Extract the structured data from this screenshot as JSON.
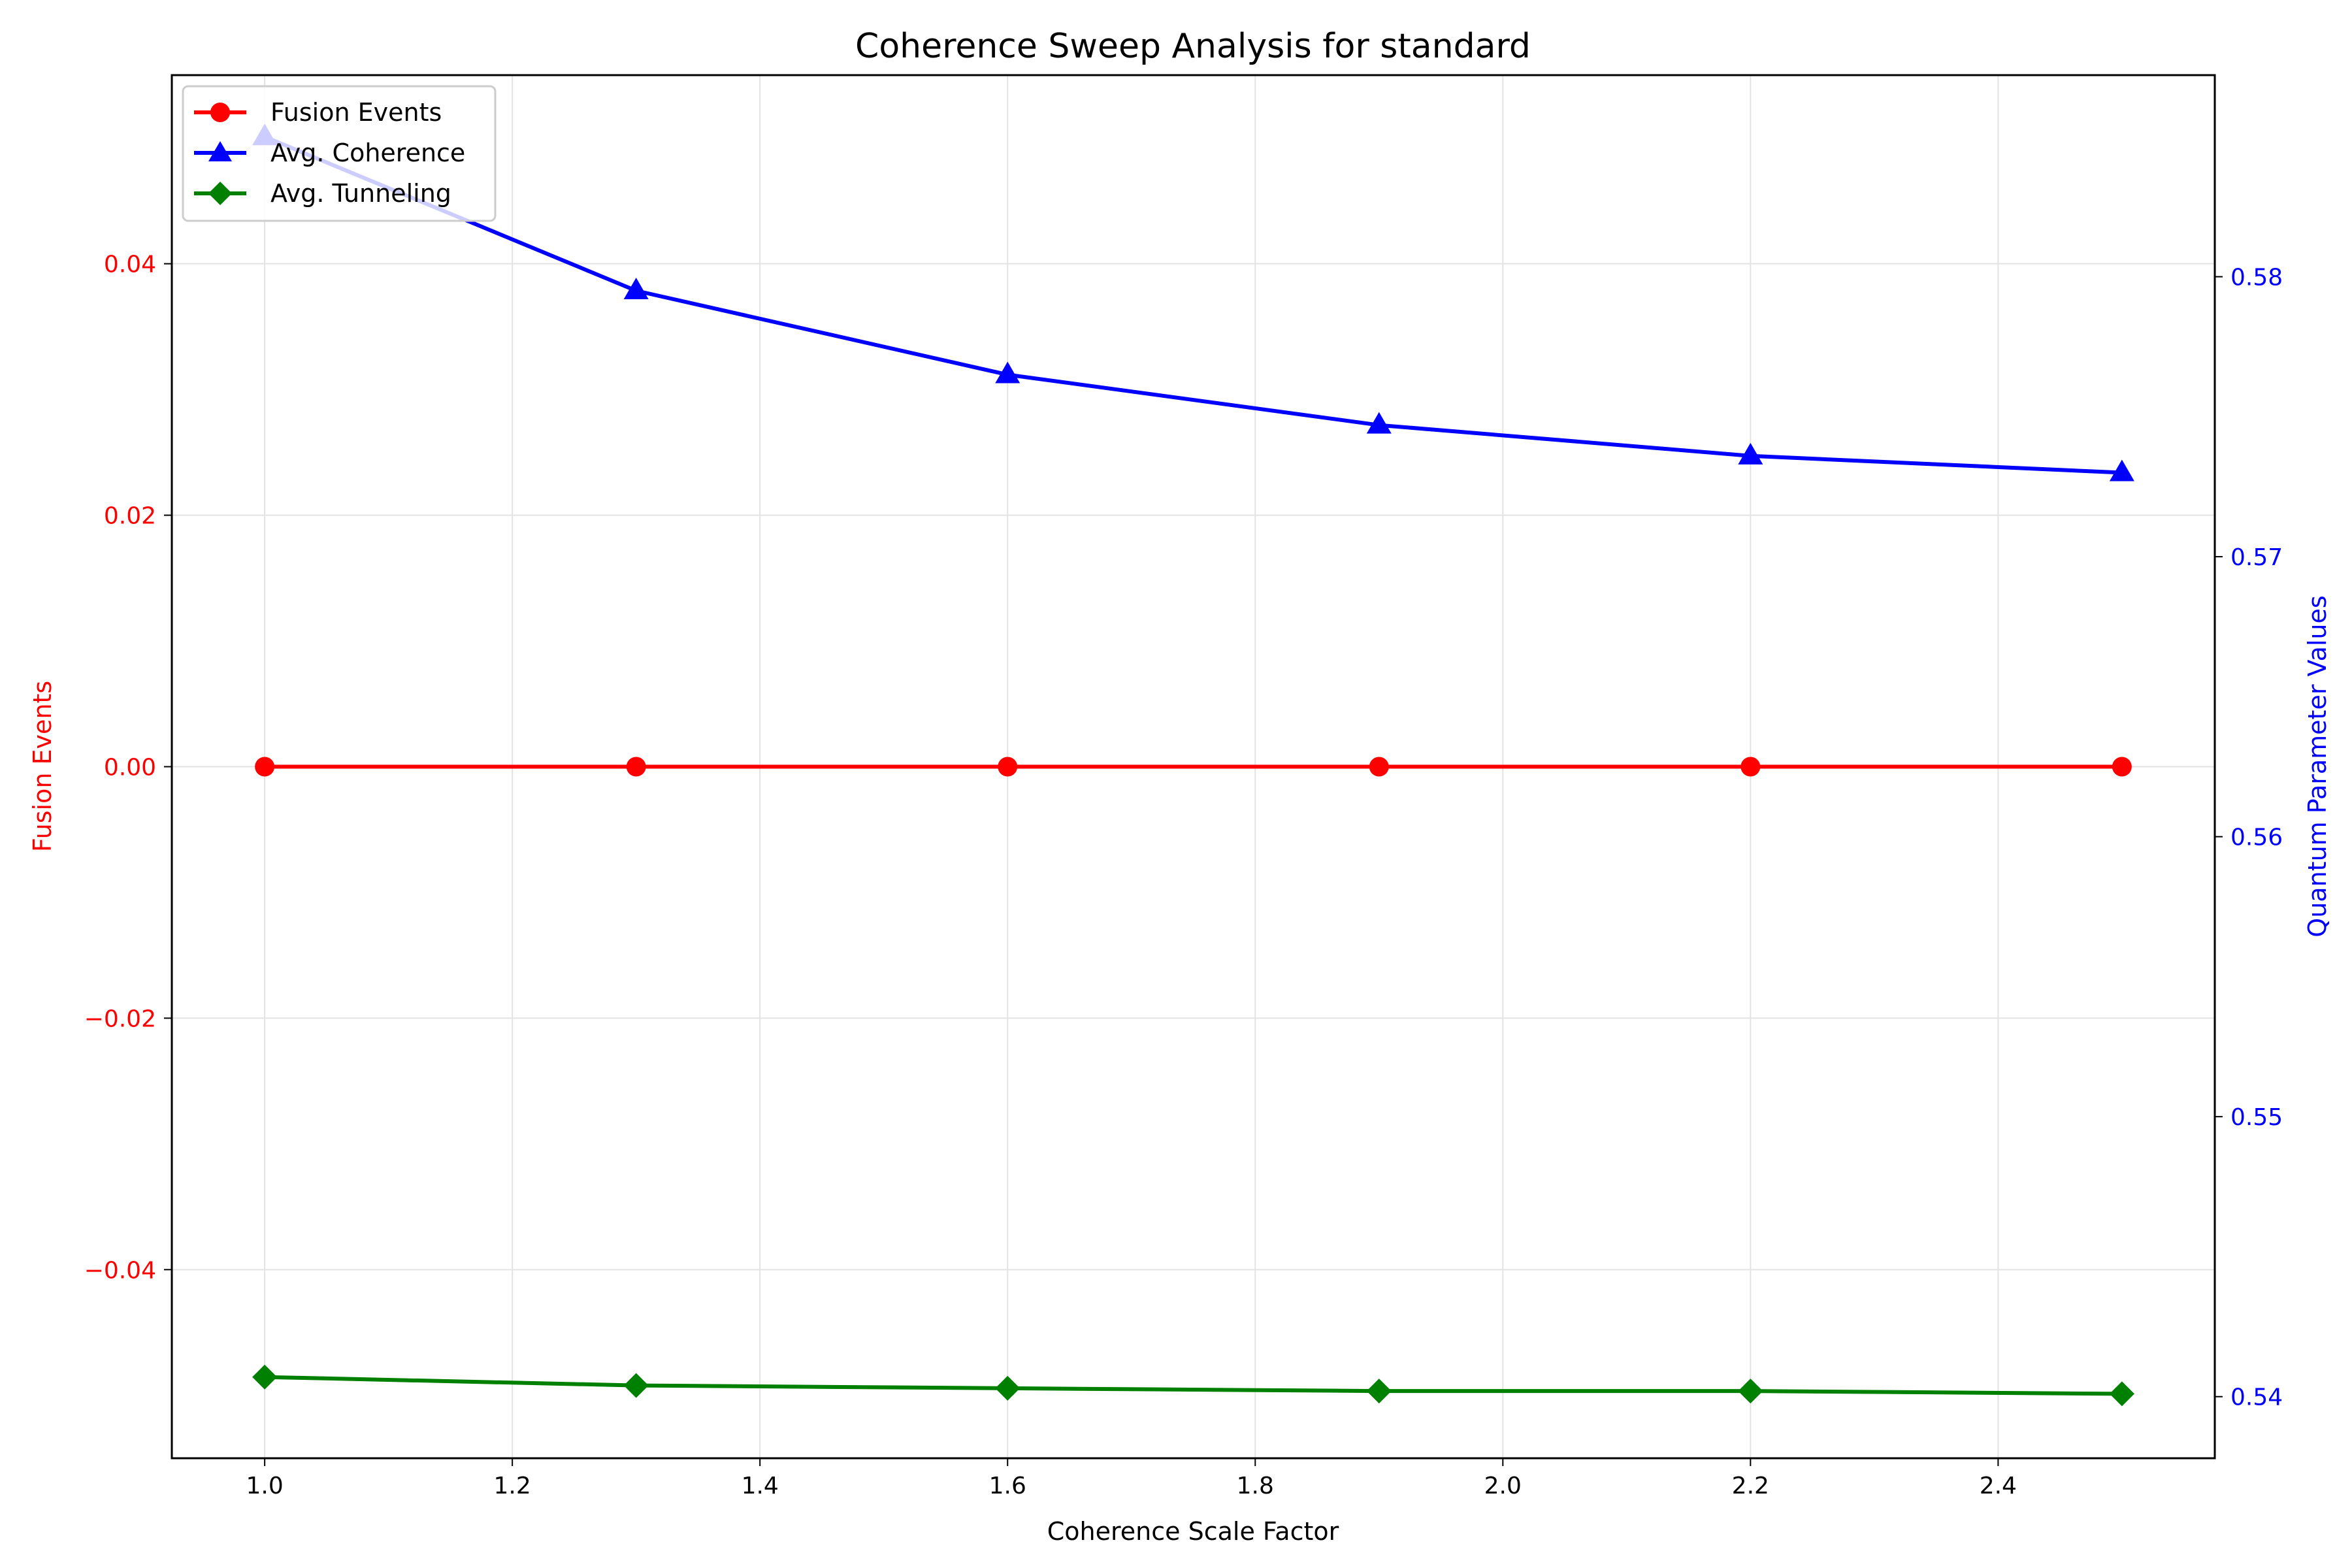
{
  "chart_data": {
    "type": "line",
    "title": "Coherence Sweep Analysis for standard",
    "xlabel": "Coherence Scale Factor",
    "ylabel_left": "Fusion Events",
    "ylabel_right": "Quantum Parameter Values",
    "x": [
      1.0,
      1.3,
      1.6,
      1.9,
      2.2,
      2.5
    ],
    "xlim": [
      0.925,
      2.575
    ],
    "ylim_left": [
      -0.055,
      0.055
    ],
    "ylim_right": [
      0.5378,
      0.5872
    ],
    "x_ticks": [
      1.0,
      1.2,
      1.4,
      1.6,
      1.8,
      2.0,
      2.2,
      2.4
    ],
    "x_tick_labels": [
      "1.0",
      "1.2",
      "1.4",
      "1.6",
      "1.8",
      "2.0",
      "2.2",
      "2.4"
    ],
    "y_left_ticks": [
      -0.04,
      -0.02,
      0.0,
      0.02,
      0.04
    ],
    "y_left_tick_labels": [
      "−0.04",
      "−0.02",
      "0.00",
      "0.02",
      "0.04"
    ],
    "y_right_ticks": [
      0.54,
      0.55,
      0.56,
      0.57,
      0.58
    ],
    "y_right_tick_labels": [
      "0.54",
      "0.55",
      "0.56",
      "0.57",
      "0.58"
    ],
    "grid": true,
    "legend_position": "top-left",
    "series": [
      {
        "name": "Fusion Events",
        "axis": "left",
        "color": "#ff0000",
        "marker": "circle",
        "values": [
          0,
          0,
          0,
          0,
          0,
          0
        ]
      },
      {
        "name": "Avg. Coherence",
        "axis": "right",
        "color": "#0000ff",
        "marker": "triangle",
        "values": [
          0.585,
          0.5795,
          0.5765,
          0.5747,
          0.5736,
          0.573
        ]
      },
      {
        "name": "Avg. Tunneling",
        "axis": "right",
        "color": "#008000",
        "marker": "diamond",
        "values": [
          0.5407,
          0.5404,
          0.5403,
          0.5402,
          0.5402,
          0.5401
        ]
      }
    ]
  }
}
